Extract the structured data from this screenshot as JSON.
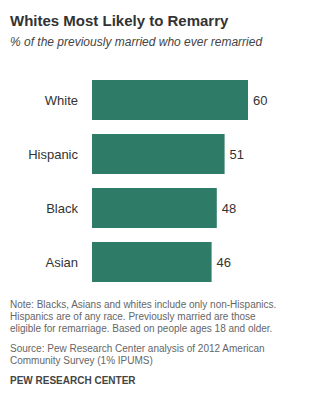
{
  "chart_data": {
    "type": "bar",
    "title": "Whites Most Likely to Remarry",
    "subtitle": "% of the previously married who ever remarried",
    "categories": [
      "White",
      "Hispanic",
      "Black",
      "Asian"
    ],
    "values": [
      60,
      51,
      48,
      46
    ],
    "color": "#2e7b68",
    "orientation": "horizontal",
    "data_labels": true,
    "tick_labels": "y",
    "xlim": [
      0,
      60
    ],
    "annotations": [
      "Note: Blacks, Asians and whites include only non-Hispanics. Hispanics are of any race. Previously married are those eligible for remarriage. Based on people ages 18 and older.",
      "Source: Pew Research Center analysis of 2012 American Community Survey (1% IPUMS)",
      "PEW RESEARCH CENTER"
    ]
  }
}
